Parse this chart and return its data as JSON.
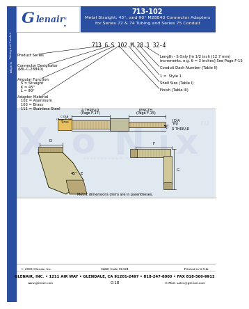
{
  "title_number": "713-102",
  "title_line2": "Metal Straight, 45°, and 90° M28840 Connector Adapters",
  "title_line3": "for Series 72 & 74 Tubing and Series 75 Conduit",
  "header_bg": "#2b4fa0",
  "logo_text": "Glenair.",
  "logo_italic": "G",
  "part_number": "713 G S 102 M 28 1 32-4",
  "left_labels": [
    "Product Series",
    "Connector Designator\n(MIL-C-28840)",
    "Angular Function\n   S = Straight\n   K = 45°\n   L = 90°",
    "Adapter Material\n   102 = Aluminum\n   103 = Brass\n   111 = Stainless Steel"
  ],
  "right_labels": [
    "Length - S Only [In 1/2 inch (12.7 mm)\nincrements, e.g. 6 = 3 inches] See Page F-15",
    "Conduit Dash Number (Table II)",
    "1 =  Style 1",
    "Shell Size (Table I)",
    "Finish (Table III)"
  ],
  "diagram_labels": {
    "a_thread": "A THREAD\n(Page F-17)",
    "length": "LENGTH\n(Page F-15)",
    "c_dia": "C DIA\n(Page F-17)\n1.700",
    "j_dia": "J DIA\nTYP",
    "r_thread": "R THREAD",
    "dim_d": "D",
    "dim_e": "E",
    "dim_f": "F",
    "dim_g": "G",
    "angle": "45°"
  },
  "watermark_text": "XONIX",
  "watermark_sub": "з л е к т р о н н ы й   п о р т а л",
  "watermark_ru": ".ru",
  "metric_note": "Metric dimensions (mm) are in parentheses.",
  "footer_copy": "© 2003 Glenair, Inc.",
  "footer_cage": "CAGE Code 06324",
  "footer_printed": "Printed in U.S.A.",
  "footer_address": "GLENAIR, INC. • 1211 AIR WAY • GLENDALE, CA 91201-2497 • 818-247-6000 • FAX 818-500-9912",
  "footer_web": "www.glenair.com",
  "footer_page": "G-18",
  "footer_email": "E-Mail: sales@glenair.com",
  "bg": "#ffffff",
  "left_bar_color": "#2b4fa0",
  "sidebar_text_color": "#ffffff",
  "body_section_bg": "#f0f0f0",
  "watermark_color": "#c8d4e8",
  "watermark_alpha": 0.5,
  "diagram_bg": "#e0e8f0"
}
